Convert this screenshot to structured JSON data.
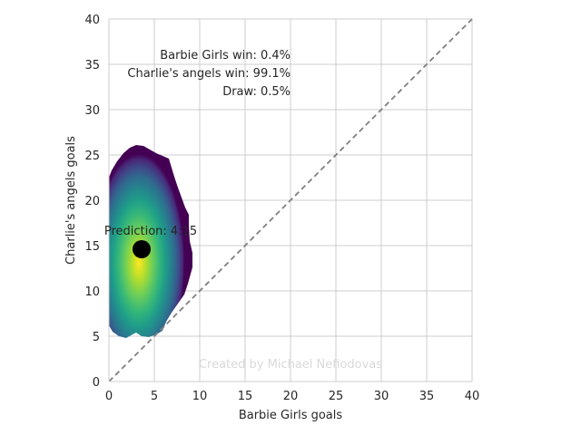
{
  "chart_data": {
    "type": "scatter",
    "title": "",
    "xlabel": "Barbie Girls goals",
    "ylabel": "Charlie's angels goals",
    "xlim": [
      0,
      40
    ],
    "ylim": [
      0,
      40
    ],
    "xticks": [
      0,
      5,
      10,
      15,
      20,
      25,
      30,
      35,
      40
    ],
    "yticks": [
      0,
      5,
      10,
      15,
      20,
      25,
      30,
      35,
      40
    ],
    "grid": true,
    "diagonal_reference_line": {
      "from": [
        0,
        0
      ],
      "to": [
        40,
        40
      ],
      "style": "dashed",
      "color": "#808080"
    },
    "density": {
      "colormap": "viridis",
      "center": [
        3.5,
        14.5
      ],
      "x_extent": [
        0,
        9.2
      ],
      "y_extent": [
        4.8,
        26.1
      ]
    },
    "prediction_point": {
      "x": 3.6,
      "y": 14.6,
      "label": "Prediction: 4:15",
      "color": "#000000"
    },
    "annotations": [
      "Barbie Girls win: 0.4%",
      "Charlie's angels win: 99.1%",
      "Draw: 0.5%"
    ],
    "watermark": "Created by Michael Nefiodovas"
  }
}
